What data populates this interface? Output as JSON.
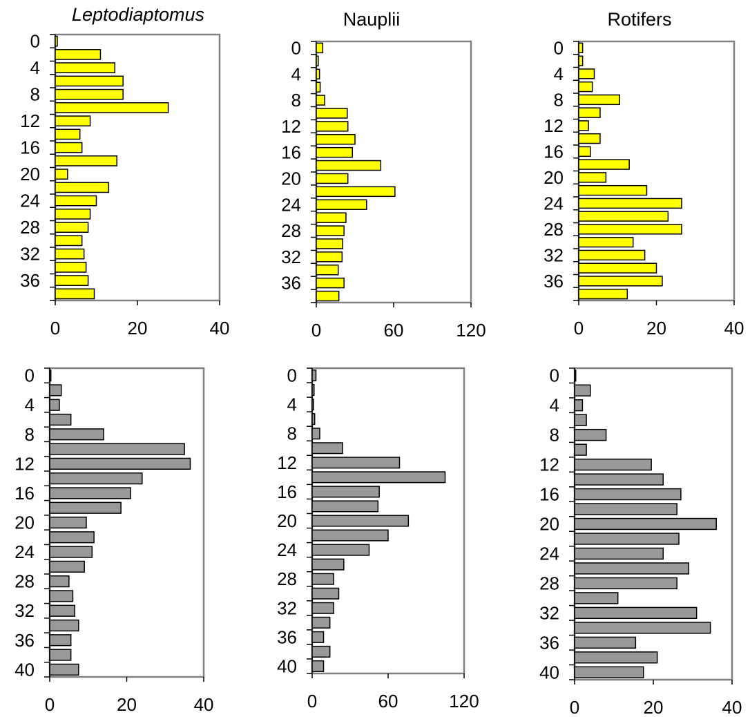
{
  "colors": {
    "top": "#ffff00",
    "bottom": "#999999",
    "frame": "#808080",
    "text": "#000000"
  },
  "chart_data": [
    {
      "type": "bar",
      "orientation": "horizontal",
      "title": "Leptodiaptomus",
      "title_italic": true,
      "xlim": [
        0,
        40
      ],
      "xticks": [
        0,
        20,
        40
      ],
      "yticks": [
        0,
        4,
        8,
        12,
        16,
        20,
        24,
        28,
        32,
        36
      ],
      "depths": [
        0,
        2,
        4,
        6,
        8,
        10,
        12,
        14,
        16,
        18,
        20,
        22,
        24,
        26,
        28,
        30,
        32,
        34,
        36,
        38
      ],
      "values": [
        0.5,
        11,
        14.5,
        16.5,
        16.5,
        27.5,
        8.5,
        6,
        6.5,
        15,
        3,
        13,
        10,
        8.5,
        8,
        6.5,
        7,
        7.5,
        8,
        9.5
      ]
    },
    {
      "type": "bar",
      "orientation": "horizontal",
      "title": "Nauplii",
      "title_italic": false,
      "xlim": [
        0,
        120
      ],
      "xticks": [
        0,
        60,
        120
      ],
      "yticks": [
        0,
        4,
        8,
        12,
        16,
        20,
        24,
        28,
        32,
        36
      ],
      "depths": [
        0,
        2,
        4,
        6,
        8,
        10,
        12,
        14,
        16,
        18,
        20,
        22,
        24,
        26,
        28,
        30,
        32,
        34,
        36,
        38
      ],
      "values": [
        5,
        1.5,
        2.5,
        3,
        6.5,
        24,
        24.5,
        30,
        28,
        50,
        24.5,
        61,
        39,
        23,
        21.5,
        20.5,
        20,
        17,
        21.5,
        17.5
      ]
    },
    {
      "type": "bar",
      "orientation": "horizontal",
      "title": "Rotifers",
      "title_italic": false,
      "xlim": [
        0,
        40
      ],
      "xticks": [
        0,
        20,
        40
      ],
      "yticks": [
        0,
        4,
        8,
        12,
        16,
        20,
        24,
        28,
        32,
        36
      ],
      "depths": [
        0,
        2,
        4,
        6,
        8,
        10,
        12,
        14,
        16,
        18,
        20,
        22,
        24,
        26,
        28,
        30,
        32,
        34,
        36,
        38
      ],
      "values": [
        1,
        1,
        4,
        3.5,
        10.5,
        5.5,
        2.5,
        5.5,
        3,
        13,
        7,
        17.5,
        26.5,
        23,
        26.5,
        14,
        17,
        20,
        21.5,
        12.5
      ]
    },
    {
      "type": "bar",
      "orientation": "horizontal",
      "title": "",
      "title_italic": false,
      "xlim": [
        0,
        40
      ],
      "xticks": [
        0,
        20,
        40
      ],
      "yticks": [
        0,
        4,
        8,
        12,
        16,
        20,
        24,
        28,
        32,
        36,
        40
      ],
      "depths": [
        0,
        2,
        4,
        6,
        8,
        10,
        12,
        14,
        16,
        18,
        20,
        22,
        24,
        26,
        28,
        30,
        32,
        34,
        36,
        38,
        40
      ],
      "values": [
        0.3,
        3,
        2.5,
        5.5,
        14,
        35,
        36.5,
        24,
        21,
        18.5,
        9.5,
        11.5,
        11,
        9,
        5,
        6,
        6.5,
        7.5,
        5.5,
        5.5,
        7.5
      ]
    },
    {
      "type": "bar",
      "orientation": "horizontal",
      "title": "",
      "title_italic": false,
      "xlim": [
        0,
        120
      ],
      "xticks": [
        0,
        60,
        120
      ],
      "yticks": [
        0,
        4,
        8,
        12,
        16,
        20,
        24,
        28,
        32,
        36,
        40
      ],
      "depths": [
        0,
        2,
        4,
        6,
        8,
        10,
        12,
        14,
        16,
        18,
        20,
        22,
        24,
        26,
        28,
        30,
        32,
        34,
        36,
        38,
        40
      ],
      "values": [
        3,
        1.5,
        1,
        2,
        6,
        24,
        69,
        105,
        53,
        52,
        76,
        60,
        45,
        25,
        17,
        21,
        17,
        14,
        9,
        14,
        9
      ]
    },
    {
      "type": "bar",
      "orientation": "horizontal",
      "title": "",
      "title_italic": false,
      "xlim": [
        0,
        40
      ],
      "xticks": [
        0,
        20,
        40
      ],
      "yticks": [
        0,
        4,
        8,
        12,
        16,
        20,
        24,
        28,
        32,
        36,
        40
      ],
      "depths": [
        0,
        2,
        4,
        6,
        8,
        10,
        12,
        14,
        16,
        18,
        20,
        22,
        24,
        26,
        28,
        30,
        32,
        34,
        36,
        38,
        40
      ],
      "values": [
        0.3,
        4,
        2,
        3,
        8,
        3,
        19.5,
        22.5,
        27,
        26,
        36,
        26.5,
        22.5,
        29,
        26,
        11,
        31,
        34.5,
        15.5,
        21,
        17.5
      ]
    }
  ]
}
